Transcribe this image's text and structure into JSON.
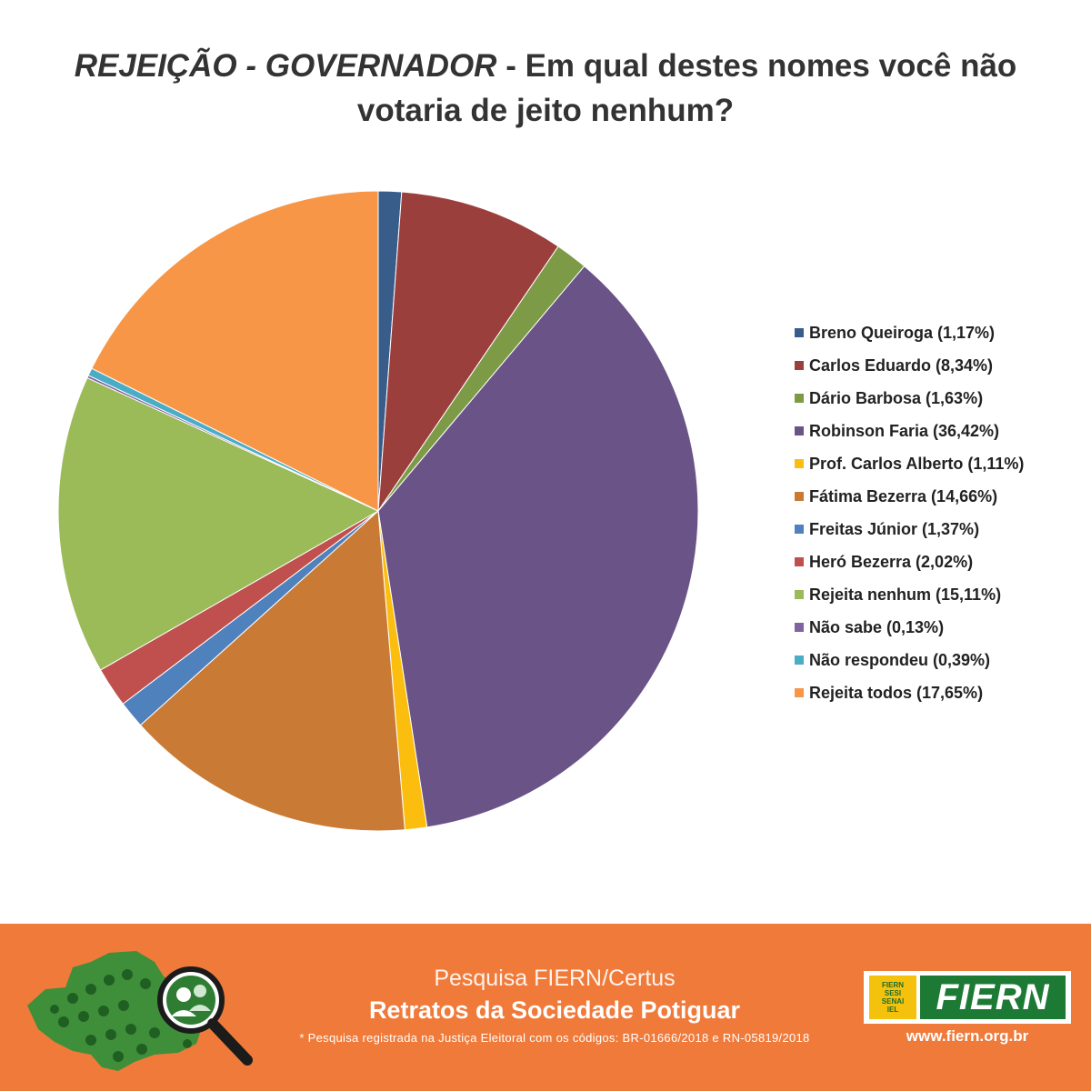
{
  "title": {
    "emphasis": "REJEIÇÃO - GOVERNADOR",
    "rest": " - Em qual destes nomes você não votaria de jeito nenhum?"
  },
  "chart_data": {
    "type": "pie",
    "title": "REJEIÇÃO - GOVERNADOR - Em qual destes nomes você não votaria de jeito nenhum?",
    "legend_position": "right",
    "slices": [
      {
        "label": "Breno Queiroga (1,17%)",
        "value": 1.17,
        "color": "#385d8a"
      },
      {
        "label": "Carlos Eduardo (8,34%)",
        "value": 8.34,
        "color": "#9b3f3d"
      },
      {
        "label": "Dário Barbosa (1,63%)",
        "value": 1.63,
        "color": "#7d9b46"
      },
      {
        "label": "Robinson Faria (36,42%)",
        "value": 36.42,
        "color": "#6a5386"
      },
      {
        "label": "Prof. Carlos Alberto (1,11%)",
        "value": 1.11,
        "color": "#fbbe0f"
      },
      {
        "label": "Fátima Bezerra (14,66%)",
        "value": 14.66,
        "color": "#c97b36"
      },
      {
        "label": "Freitas Júnior (1,37%)",
        "value": 1.37,
        "color": "#4f81bd"
      },
      {
        "label": "Heró Bezerra (2,02%)",
        "value": 2.02,
        "color": "#c0504d"
      },
      {
        "label": "Rejeita nenhum (15,11%)",
        "value": 15.11,
        "color": "#9bbb59"
      },
      {
        "label": "Não sabe (0,13%)",
        "value": 0.13,
        "color": "#8064a2"
      },
      {
        "label": "Não respondeu (0,39%)",
        "value": 0.39,
        "color": "#4bacc6"
      },
      {
        "label": "Rejeita todos (17,65%)",
        "value": 17.65,
        "color": "#f79646"
      }
    ]
  },
  "footer": {
    "line1": "Pesquisa FIERN/Certus",
    "line2": "Retratos da Sociedade Potiguar",
    "note": "* Pesquisa registrada na Justiça Eleitoral com os códigos: BR-01666/2018 e RN-05819/2018",
    "background": "#f07a3a",
    "logo": {
      "badge_lines": [
        "FIERN",
        "SESI",
        "SENAI",
        "IEL"
      ],
      "word": "FIERN",
      "url": "www.fiern.org.br"
    }
  }
}
